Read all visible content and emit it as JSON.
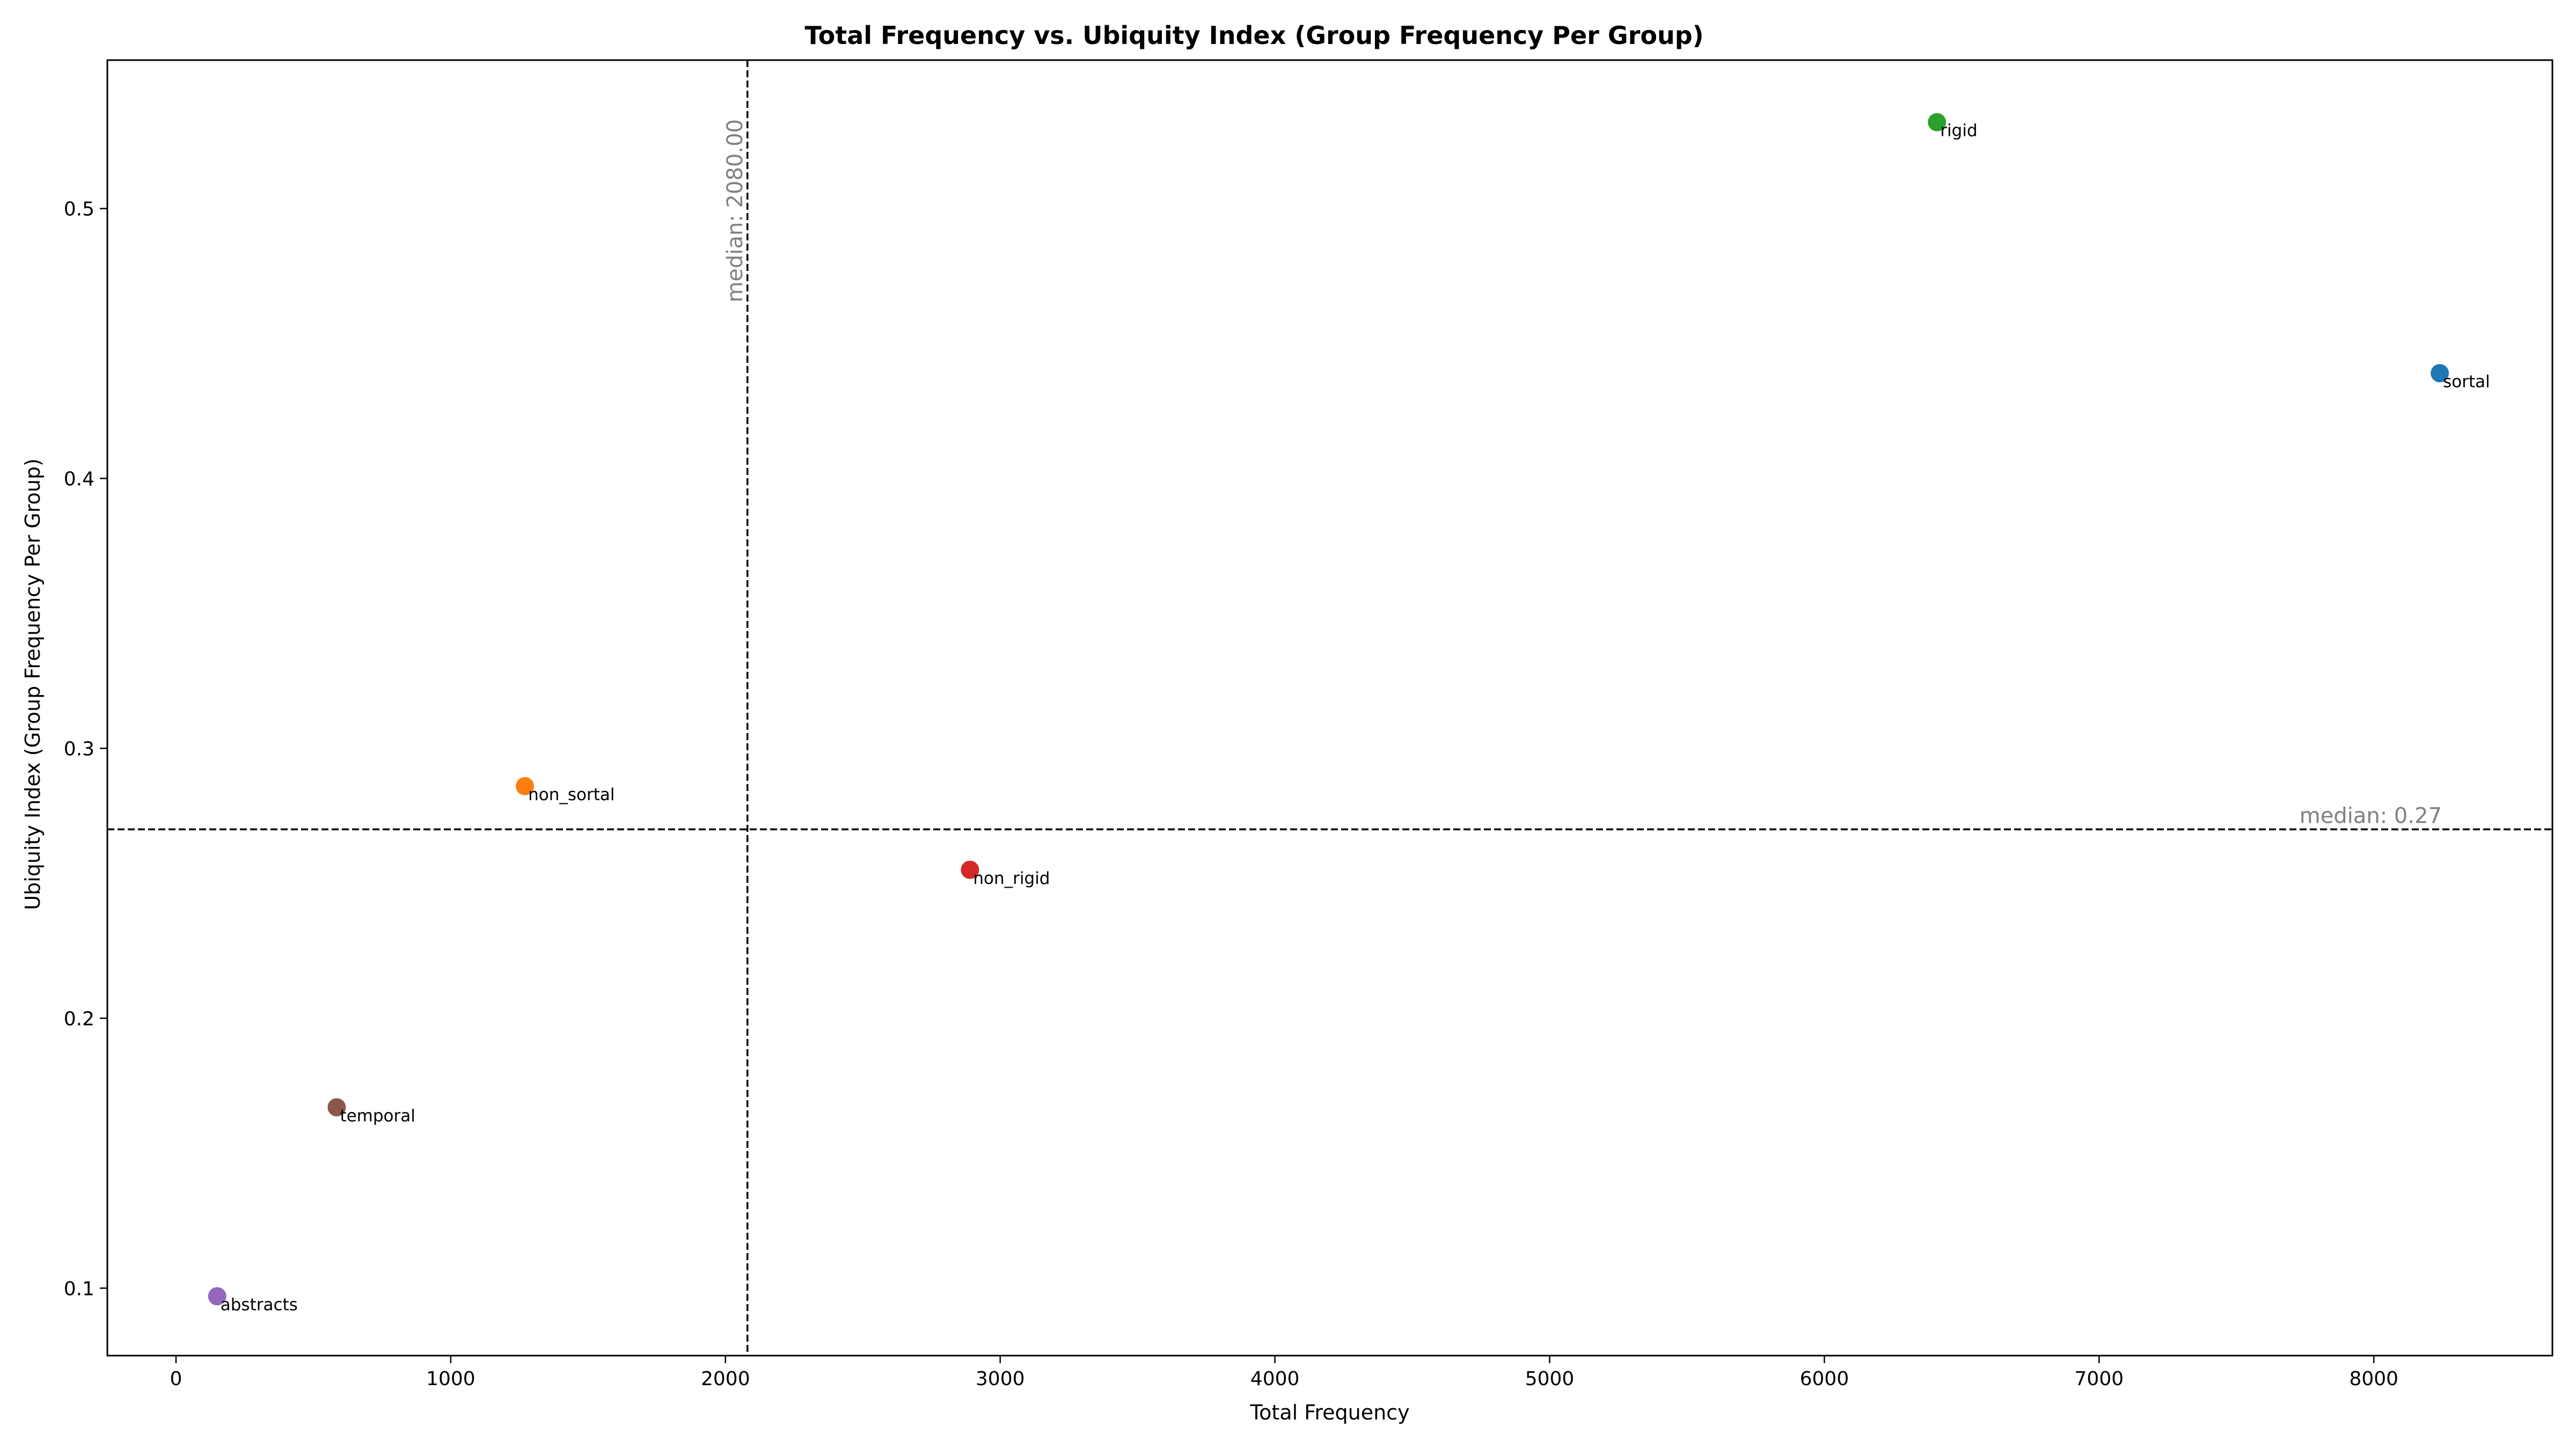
{
  "chart_data": {
    "type": "scatter",
    "title": "Total Frequency vs. Ubiquity Index (Group Frequency Per Group)",
    "xlabel": "Total Frequency",
    "ylabel": "Ubiquity Index (Group Frequency Per Group)",
    "xlim": [
      -250,
      8650
    ],
    "ylim": [
      0.075,
      0.555
    ],
    "xticks": [
      0,
      1000,
      2000,
      3000,
      4000,
      5000,
      6000,
      7000,
      8000
    ],
    "yticks": [
      0.1,
      0.2,
      0.3,
      0.4,
      0.5
    ],
    "grid": false,
    "points": [
      {
        "label": "sortal",
        "x": 8240,
        "y": 0.439,
        "color": "#1f77b4"
      },
      {
        "label": "non_sortal",
        "x": 1270,
        "y": 0.286,
        "color": "#ff7f0e"
      },
      {
        "label": "rigid",
        "x": 6410,
        "y": 0.532,
        "color": "#2ca02c"
      },
      {
        "label": "non_rigid",
        "x": 2890,
        "y": 0.255,
        "color": "#d62728"
      },
      {
        "label": "abstracts",
        "x": 150,
        "y": 0.097,
        "color": "#9467bd"
      },
      {
        "label": "temporal",
        "x": 585,
        "y": 0.167,
        "color": "#8c564b"
      }
    ],
    "median_x": {
      "value": 2080,
      "label": "median: 2080.00"
    },
    "median_y": {
      "value": 0.27,
      "label": "median: 0.27"
    }
  }
}
